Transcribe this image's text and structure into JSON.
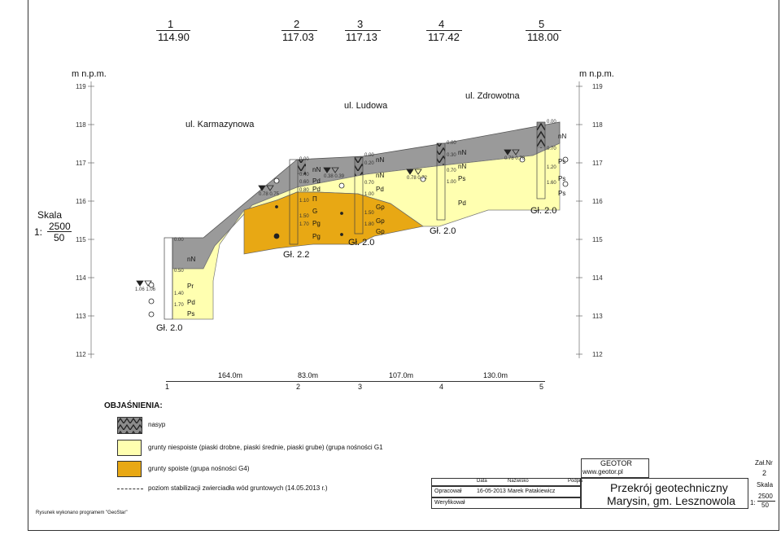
{
  "header": {
    "boreholes": [
      {
        "num": "1",
        "elev": "114.90"
      },
      {
        "num": "2",
        "elev": "117.03"
      },
      {
        "num": "3",
        "elev": "117.13"
      },
      {
        "num": "4",
        "elev": "117.42"
      },
      {
        "num": "5",
        "elev": "118.00"
      }
    ]
  },
  "axis": {
    "unit_left": "m n.p.m.",
    "unit_right": "m n.p.m.",
    "ticks": [
      "119",
      "118",
      "117",
      "116",
      "115",
      "114",
      "113",
      "112"
    ]
  },
  "scale_left": {
    "label": "Skala",
    "prefix": "1:",
    "v1": "2500",
    "v2": "50"
  },
  "streets": [
    "ul. Karmazynowa",
    "ul. Ludowa",
    "ul. Zdrowotna"
  ],
  "depths": [
    "Gł. 2.0",
    "Gł. 2.2",
    "Gł. 2.0",
    "Gł. 2.0",
    "Gł. 2.0"
  ],
  "soil_codes": [
    "nN",
    "Pr",
    "Pd",
    "Ps",
    "nN",
    "Pd",
    "Pd",
    "Π",
    "G",
    "Pg",
    "Pg",
    "nN",
    "nN",
    "Pd",
    "Gp",
    "Gp",
    "Gp",
    "nN",
    "nN",
    "Ps",
    "Pd",
    "nN",
    "Ps",
    "Ps",
    "Ps"
  ],
  "layer_depths": [
    "0.00",
    "0.50",
    "1.40",
    "1.70",
    "0.00",
    "0.40",
    "0.60",
    "0.80",
    "1.10",
    "1.50",
    "1.70",
    "0.00",
    "0.20",
    "0.70",
    "1.00",
    "1.50",
    "1.80",
    "0.00",
    "0.30",
    "0.70",
    "1.00",
    "0.00",
    "0.70",
    "1.20",
    "1.60"
  ],
  "water_levels": [
    "1.06 1.06",
    "0.78 0.75",
    "0.38 0.39",
    "0.78 0.72",
    "0.78 0.70"
  ],
  "distances": {
    "numbers": [
      "1",
      "2",
      "3",
      "4",
      "5"
    ],
    "spans": [
      "164.0m",
      "83.0m",
      "107.0m",
      "130.0m"
    ]
  },
  "legend": {
    "title": "OBJAŚNIENIA:",
    "items": [
      "nasyp",
      "grunty niespoiste (piaski drobne, piaski średnie, piaski grube) (grupa nośności G1",
      "grunty spoiste (grupa nośności G4)",
      "poziom stabilizacji zwierciadła wód gruntowych (14.05.2013 r.)"
    ]
  },
  "titleblock": {
    "company": "GEOTOR",
    "website": "www.geotor.pl",
    "col_data": "Data",
    "col_name": "Nazwisko",
    "col_sign": "Podpis",
    "row1_label": "Opracował",
    "row1_date": "16-05-2013",
    "row1_name": "Marek Patakiewicz",
    "row2_label": "Weryfikował",
    "title_line1": "Przekrój geotechniczny",
    "title_line2": "Marysin, gm. Lesznowola",
    "zal_label": "Zał.Nr",
    "zal_value": "2",
    "skala_label": "Skala",
    "skala_prefix": "1:",
    "skala_v1": "2500",
    "skala_v2": "50"
  },
  "footer_note": "Rysunek wykonano programem \"GeoStar\"",
  "colors": {
    "nasyp": "#9a9a9a",
    "niespoiste": "#ffffb0",
    "spoiste": "#e8a814"
  }
}
